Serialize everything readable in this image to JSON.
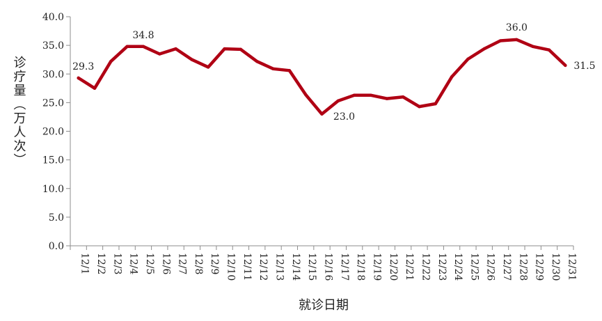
{
  "chart_data": {
    "type": "line",
    "title": "",
    "xlabel": "就诊日期",
    "ylabel": "诊疗量（万人次）",
    "ylim": [
      0,
      40
    ],
    "yticks": [
      "0.0",
      "5.0",
      "10.0",
      "15.0",
      "20.0",
      "25.0",
      "30.0",
      "35.0",
      "40.0"
    ],
    "grid": false,
    "legend": "none",
    "series_color": "#B00014",
    "categories": [
      "12/1",
      "12/2",
      "12/3",
      "12/4",
      "12/5",
      "12/6",
      "12/7",
      "12/8",
      "12/9",
      "12/10",
      "12/11",
      "12/12",
      "12/13",
      "12/14",
      "12/15",
      "12/16",
      "12/17",
      "12/18",
      "12/19",
      "12/20",
      "12/21",
      "12/22",
      "12/23",
      "12/24",
      "12/25",
      "12/26",
      "12/27",
      "12/28",
      "12/29",
      "12/30",
      "12/31"
    ],
    "series": [
      {
        "values": [
          29.3,
          27.5,
          32.2,
          34.8,
          34.8,
          33.5,
          34.4,
          32.5,
          31.2,
          34.4,
          34.3,
          32.2,
          30.9,
          30.6,
          26.4,
          23.0,
          25.3,
          26.3,
          26.3,
          25.7,
          26.0,
          24.3,
          24.8,
          29.5,
          32.6,
          34.4,
          35.8,
          36.0,
          34.8,
          34.2,
          31.5
        ]
      }
    ],
    "data_labels": [
      {
        "index": 0,
        "text": "29.3"
      },
      {
        "index": 4,
        "text": "34.8"
      },
      {
        "index": 15,
        "text": "23.0"
      },
      {
        "index": 27,
        "text": "36.0"
      },
      {
        "index": 30,
        "text": "31.5"
      }
    ]
  }
}
